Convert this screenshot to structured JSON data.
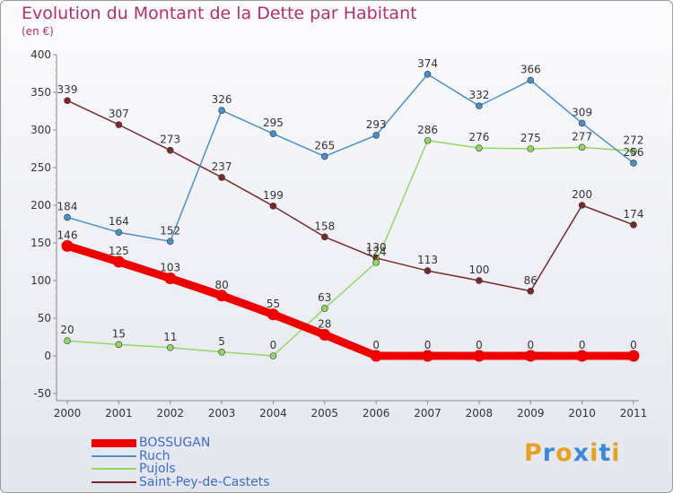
{
  "chart_data": {
    "type": "line",
    "title": "Evolution du Montant de la Dette par Habitant",
    "subtitle": "(en €)",
    "x": [
      "2000",
      "2001",
      "2002",
      "2003",
      "2004",
      "2005",
      "2006",
      "2007",
      "2008",
      "2009",
      "2010",
      "2011"
    ],
    "ylim": [
      -50,
      400
    ],
    "yticks": [
      -50,
      0,
      50,
      100,
      150,
      200,
      250,
      300,
      350,
      400
    ],
    "grid": false,
    "legend": "bottom-left",
    "series": [
      {
        "name": "BOSSUGAN",
        "color": "#ee0000",
        "values": [
          146,
          125,
          103,
          80,
          55,
          28,
          0,
          0,
          0,
          0,
          0,
          0
        ]
      },
      {
        "name": "Ruch",
        "color": "#4a90c8",
        "values": [
          184,
          164,
          152,
          326,
          295,
          265,
          293,
          374,
          332,
          366,
          309,
          256
        ]
      },
      {
        "name": "Pujols",
        "color": "#90d860",
        "values": [
          20,
          15,
          11,
          5,
          0,
          63,
          124,
          286,
          276,
          275,
          277,
          272
        ]
      },
      {
        "name": "Saint-Pey-de-Castets",
        "color": "#7a2828",
        "values": [
          339,
          307,
          273,
          237,
          199,
          158,
          130,
          113,
          100,
          86,
          200,
          174
        ]
      }
    ]
  },
  "logo": {
    "letters": [
      "P",
      "r",
      "o",
      "x",
      "i",
      "t",
      "i"
    ],
    "colors": [
      "#e8a020",
      "#3a8ad8",
      "#e8a020",
      "#3a8ad8",
      "#e8a020",
      "#3a8ad8",
      "#e8a020"
    ]
  }
}
